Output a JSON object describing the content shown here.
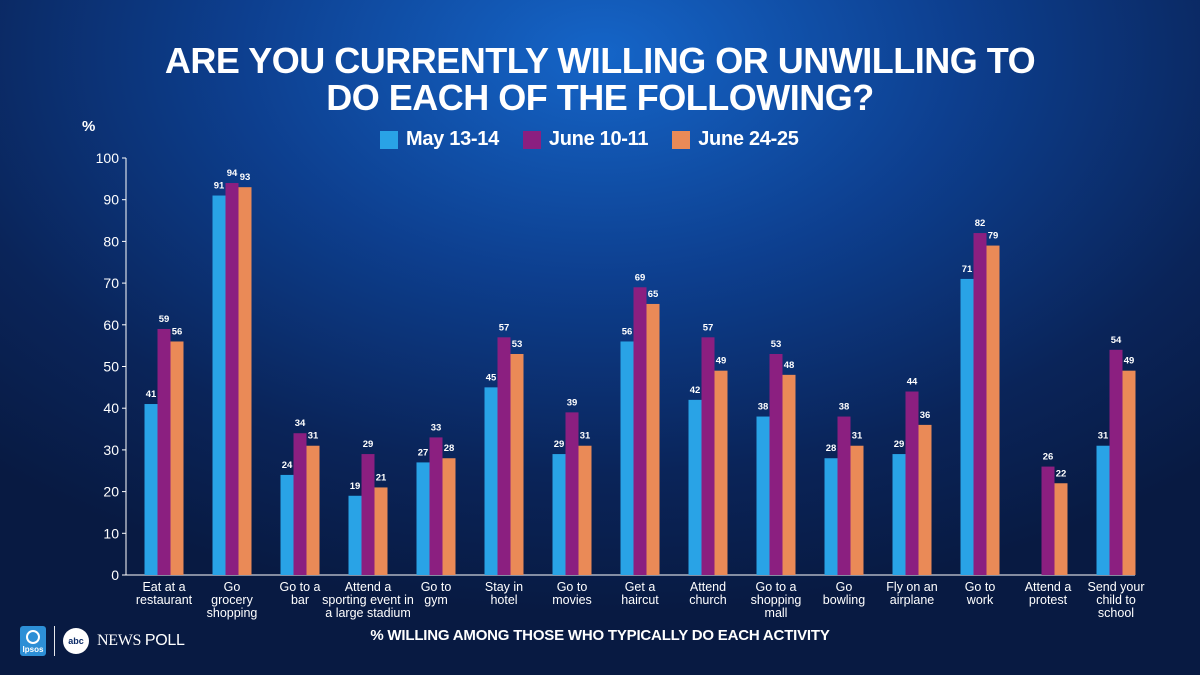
{
  "title_lines": [
    "ARE YOU CURRENTLY WILLING OR UNWILLING TO",
    "DO EACH OF THE FOLLOWING?"
  ],
  "subtitle": "% WILLING AMONG THOSE WHO TYPICALLY DO EACH ACTIVITY",
  "footer": {
    "ipsos": "Ipsos",
    "abc": "abc",
    "news": "NEWS",
    "poll": "POLL"
  },
  "chart_data": {
    "type": "bar",
    "title": "ARE YOU CURRENTLY WILLING OR UNWILLING TO DO EACH OF THE FOLLOWING?",
    "ylabel": "%",
    "ylim": [
      0,
      100
    ],
    "yticks": [
      0,
      10,
      20,
      30,
      40,
      50,
      60,
      70,
      80,
      90,
      100
    ],
    "categories": [
      [
        "Eat at a",
        "restaurant"
      ],
      [
        "Go",
        "grocery",
        "shopping"
      ],
      [
        "Go to a",
        "bar"
      ],
      [
        "Attend a",
        "sporting event in",
        "a large stadium"
      ],
      [
        "Go to",
        "gym"
      ],
      [
        "Stay in",
        "hotel"
      ],
      [
        "Go to",
        "movies"
      ],
      [
        "Get a",
        "haircut"
      ],
      [
        "Attend",
        "church"
      ],
      [
        "Go to a",
        "shopping",
        "mall"
      ],
      [
        "Go",
        "bowling"
      ],
      [
        "Fly on an",
        "airplane"
      ],
      [
        "Go to",
        "work"
      ],
      [
        "Attend a",
        "protest"
      ],
      [
        "Send your",
        "child to",
        "school"
      ]
    ],
    "series": [
      {
        "name": "May 13-14",
        "color": "#29a3e6",
        "values": [
          41,
          91,
          24,
          19,
          27,
          45,
          29,
          56,
          42,
          38,
          28,
          29,
          71,
          null,
          31
        ]
      },
      {
        "name": "June 10-11",
        "color": "#8b1f80",
        "values": [
          59,
          94,
          34,
          29,
          33,
          57,
          39,
          69,
          57,
          53,
          38,
          44,
          82,
          26,
          54
        ]
      },
      {
        "name": "June 24-25",
        "color": "#ea8a57",
        "values": [
          56,
          93,
          31,
          21,
          28,
          53,
          31,
          65,
          49,
          48,
          31,
          36,
          79,
          22,
          49
        ]
      }
    ],
    "legend": "top-center",
    "grid": false
  }
}
